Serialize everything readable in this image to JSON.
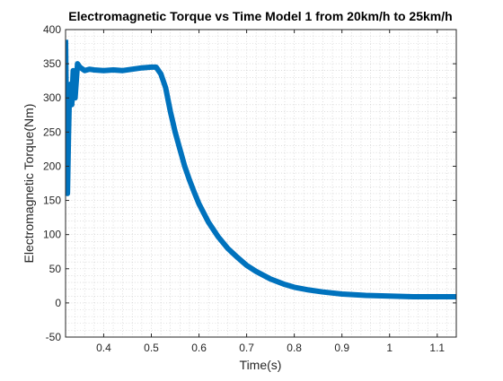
{
  "chart_data": {
    "type": "line",
    "title": "Electromagnetic Torque vs Time Model 1 from 20km/h to 25km/h",
    "xlabel": "Time(s)",
    "ylabel": "Electromagnetic Torque(Nm)",
    "xlim": [
      0.32,
      1.14
    ],
    "ylim": [
      -50,
      400
    ],
    "xticks": [
      0.4,
      0.5,
      0.6,
      0.7,
      0.8,
      0.9,
      1,
      1.1
    ],
    "xtick_labels": [
      "0.4",
      "0.5",
      "0.6",
      "0.7",
      "0.8",
      "0.9",
      "1",
      "1.1"
    ],
    "yticks": [
      -50,
      0,
      50,
      100,
      150,
      200,
      250,
      300,
      350,
      400
    ],
    "ytick_labels": [
      "-50",
      "0",
      "50",
      "100",
      "150",
      "200",
      "250",
      "300",
      "350",
      "400"
    ],
    "grid": "minor-dotted",
    "series": [
      {
        "color": "#0072BD",
        "x": [
          0.32,
          0.322,
          0.324,
          0.326,
          0.328,
          0.33,
          0.333,
          0.336,
          0.34,
          0.345,
          0.35,
          0.36,
          0.37,
          0.38,
          0.4,
          0.42,
          0.44,
          0.46,
          0.48,
          0.5,
          0.51,
          0.52,
          0.53,
          0.54,
          0.55,
          0.56,
          0.57,
          0.58,
          0.59,
          0.6,
          0.62,
          0.64,
          0.66,
          0.68,
          0.7,
          0.72,
          0.75,
          0.78,
          0.8,
          0.83,
          0.86,
          0.9,
          0.95,
          1.0,
          1.05,
          1.1,
          1.14
        ],
        "y": [
          385,
          250,
          160,
          240,
          300,
          320,
          290,
          340,
          300,
          350,
          345,
          340,
          342,
          341,
          340,
          341,
          340,
          342,
          344,
          345,
          345,
          335,
          315,
          280,
          250,
          225,
          200,
          180,
          162,
          145,
          118,
          97,
          80,
          67,
          55,
          46,
          35,
          27,
          23,
          19,
          16,
          13,
          11,
          10,
          9,
          9,
          9
        ]
      }
    ]
  }
}
